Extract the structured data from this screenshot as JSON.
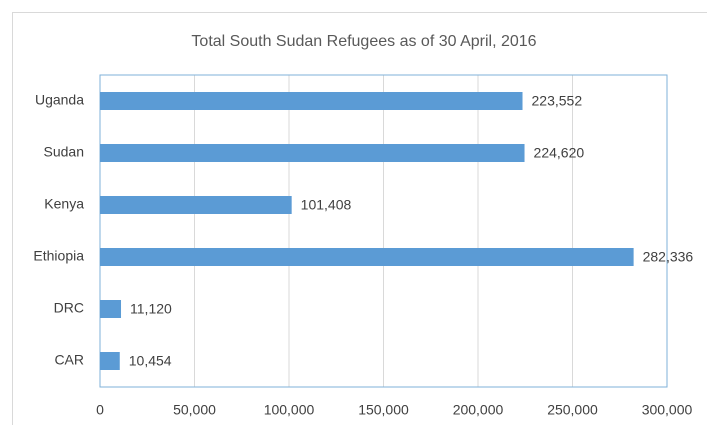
{
  "chart_data": {
    "type": "barh",
    "title": "Total South Sudan Refugees as of 30 April, 2016",
    "categories": [
      "Uganda",
      "Sudan",
      "Kenya",
      "Ethiopia",
      "DRC",
      "CAR"
    ],
    "values": [
      223552,
      224620,
      101408,
      282336,
      11120,
      10454
    ],
    "value_labels": [
      "223,552",
      "224,620",
      "101,408",
      "282,336",
      "11,120",
      "10,454"
    ],
    "color": "#5b9bd5",
    "xlim": [
      0,
      300000
    ],
    "xticks": [
      0,
      {
        "value": 50000,
        "label": "50,000"
      },
      {
        "value": 100000,
        "label": "100,000"
      },
      {
        "value": 150000,
        "label": "150,000"
      },
      {
        "value": 200000,
        "label": "200,000"
      },
      {
        "value": 250000,
        "label": "250,000"
      },
      {
        "value": 300000,
        "label": "300,000"
      }
    ],
    "grid": true
  }
}
